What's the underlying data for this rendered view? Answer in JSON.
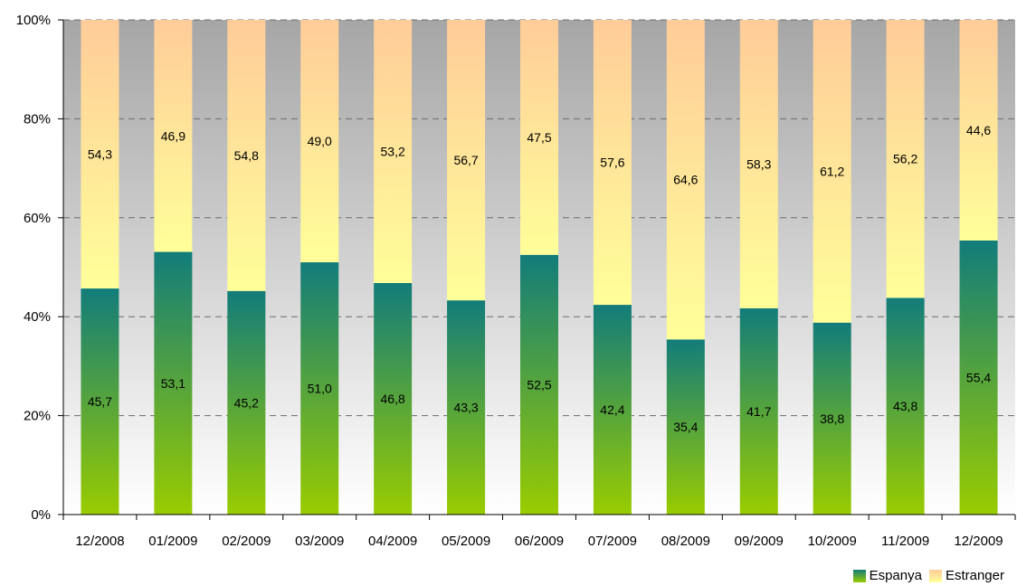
{
  "chart_data": {
    "type": "bar",
    "stacked": true,
    "categories": [
      "12/2008",
      "01/2009",
      "02/2009",
      "03/2009",
      "04/2009",
      "05/2009",
      "06/2009",
      "07/2009",
      "08/2009",
      "09/2009",
      "10/2009",
      "11/2009",
      "12/2009"
    ],
    "series": [
      {
        "name": "Espanya",
        "values": [
          45.7,
          53.1,
          45.2,
          51.0,
          46.8,
          43.3,
          52.5,
          42.4,
          35.4,
          41.7,
          38.8,
          43.8,
          55.4
        ],
        "labels": [
          "45,7",
          "53,1",
          "45,2",
          "51,0",
          "46,8",
          "43,3",
          "52,5",
          "42,4",
          "35,4",
          "41,7",
          "38,8",
          "43,8",
          "55,4"
        ],
        "color_top": "#127C7A",
        "color_bottom": "#99CC00"
      },
      {
        "name": "Estranger",
        "values": [
          54.3,
          46.9,
          54.8,
          49.0,
          53.2,
          56.7,
          47.5,
          57.6,
          64.6,
          58.3,
          61.2,
          56.2,
          44.6
        ],
        "labels": [
          "54,3",
          "46,9",
          "54,8",
          "49,0",
          "53,2",
          "56,7",
          "47,5",
          "57,6",
          "64,6",
          "58,3",
          "61,2",
          "56,2",
          "44,6"
        ],
        "color_top": "#FFCC99",
        "color_bottom": "#FFFF99"
      }
    ],
    "yticks": [
      "0%",
      "20%",
      "40%",
      "60%",
      "80%",
      "100%"
    ],
    "ylim": [
      0,
      100
    ],
    "grid": true,
    "legend": "bottom-right",
    "background_top": "#A6A6A6",
    "background_bottom": "#FFFFFF"
  }
}
